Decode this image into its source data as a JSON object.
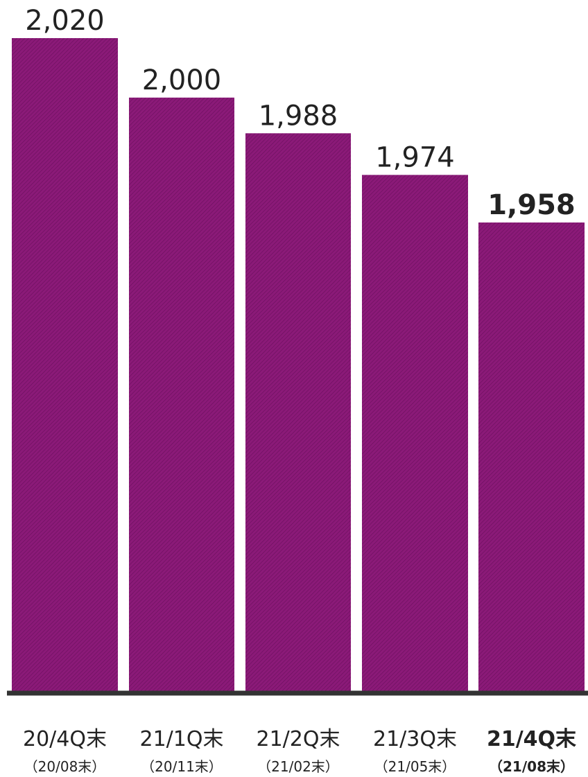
{
  "chart_data": {
    "type": "bar",
    "categories": [
      "20/4Q末",
      "21/1Q末",
      "21/2Q末",
      "21/3Q末",
      "21/4Q末"
    ],
    "sublabels": [
      "（20/08末）",
      "（20/11末）",
      "（21/02末）",
      "（21/05末）",
      "（21/08末）"
    ],
    "values": [
      2020,
      2000,
      1988,
      1974,
      1958
    ],
    "value_labels": [
      "2,020",
      "2,000",
      "1,988",
      "1,974",
      "1,958"
    ],
    "highlight_index": 4,
    "bar_color": "#8b1a78",
    "axis_color": "#333333",
    "grid": false
  }
}
